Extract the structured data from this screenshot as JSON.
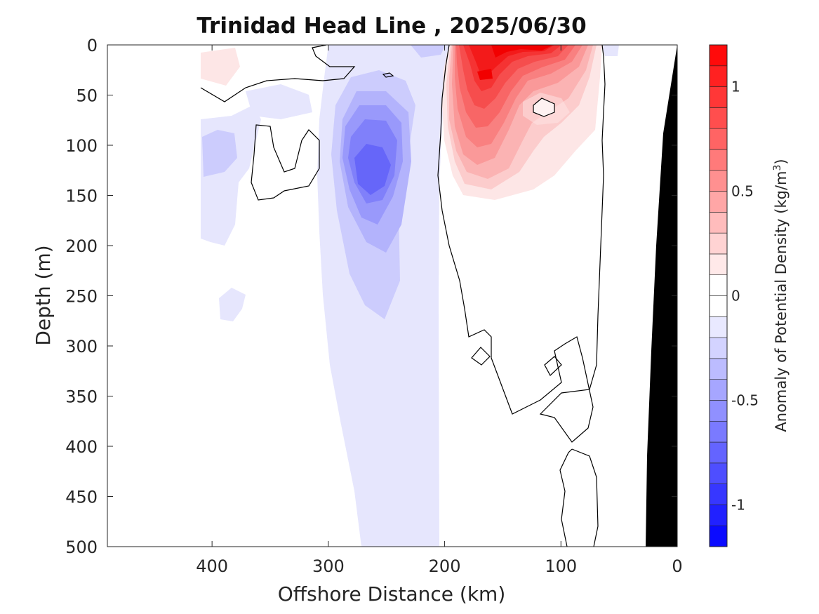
{
  "chart_data": {
    "type": "heatmap",
    "subtype": "filled-contour section",
    "title": "Trinidad Head Line , 2025/06/30",
    "xlabel": "Offshore Distance (km)",
    "ylabel": "Depth (m)",
    "xlim": [
      490,
      0
    ],
    "x_reversed": true,
    "ylim": [
      0,
      500
    ],
    "y_reversed": true,
    "x_ticks": [
      "400",
      "300",
      "200",
      "100",
      "0"
    ],
    "x_tick_values": [
      400,
      300,
      200,
      100,
      0
    ],
    "y_ticks": [
      "0",
      "50",
      "100",
      "150",
      "200",
      "250",
      "300",
      "350",
      "400",
      "450",
      "500"
    ],
    "y_tick_values": [
      0,
      50,
      100,
      150,
      200,
      250,
      300,
      350,
      400,
      450,
      500
    ],
    "colorbar": {
      "label_main": "Anomaly of Potential Density (kg/m",
      "label_sup": "3",
      "label_end": ")",
      "clim": [
        -1.2,
        1.2
      ],
      "levels_step": 0.1,
      "ticks": [
        "1",
        "0.5",
        "0",
        "-0.5",
        "-1"
      ],
      "tick_values": [
        1,
        0.5,
        0,
        -0.5,
        -1
      ],
      "negative_color": "#0000ff",
      "positive_color": "#ff0000",
      "neutral_color": "#ffffff"
    },
    "anomaly_features": [
      {
        "kind": "positive",
        "peak": 1.1,
        "x": 140,
        "y": 15,
        "x_extent": [
          205,
          65
        ],
        "y_extent": [
          0,
          210
        ]
      },
      {
        "kind": "negative",
        "peak": -0.65,
        "x": 270,
        "y": 130,
        "x_extent": [
          320,
          210
        ],
        "y_extent": [
          30,
          270
        ]
      },
      {
        "kind": "negative",
        "peak": -0.1,
        "x": 255,
        "y": 400,
        "x_extent": [
          320,
          205
        ],
        "y_extent": [
          250,
          500
        ]
      },
      {
        "kind": "negative",
        "peak": -0.2,
        "x": 400,
        "y": 110,
        "x_extent": [
          410,
          300
        ],
        "y_extent": [
          60,
          200
        ]
      },
      {
        "kind": "positive",
        "peak": 0.1,
        "x": 395,
        "y": 20,
        "x_extent": [
          410,
          360
        ],
        "y_extent": [
          5,
          40
        ]
      }
    ],
    "zero_contour_shown": true,
    "bathymetry_color": "#000000",
    "grid": false
  }
}
